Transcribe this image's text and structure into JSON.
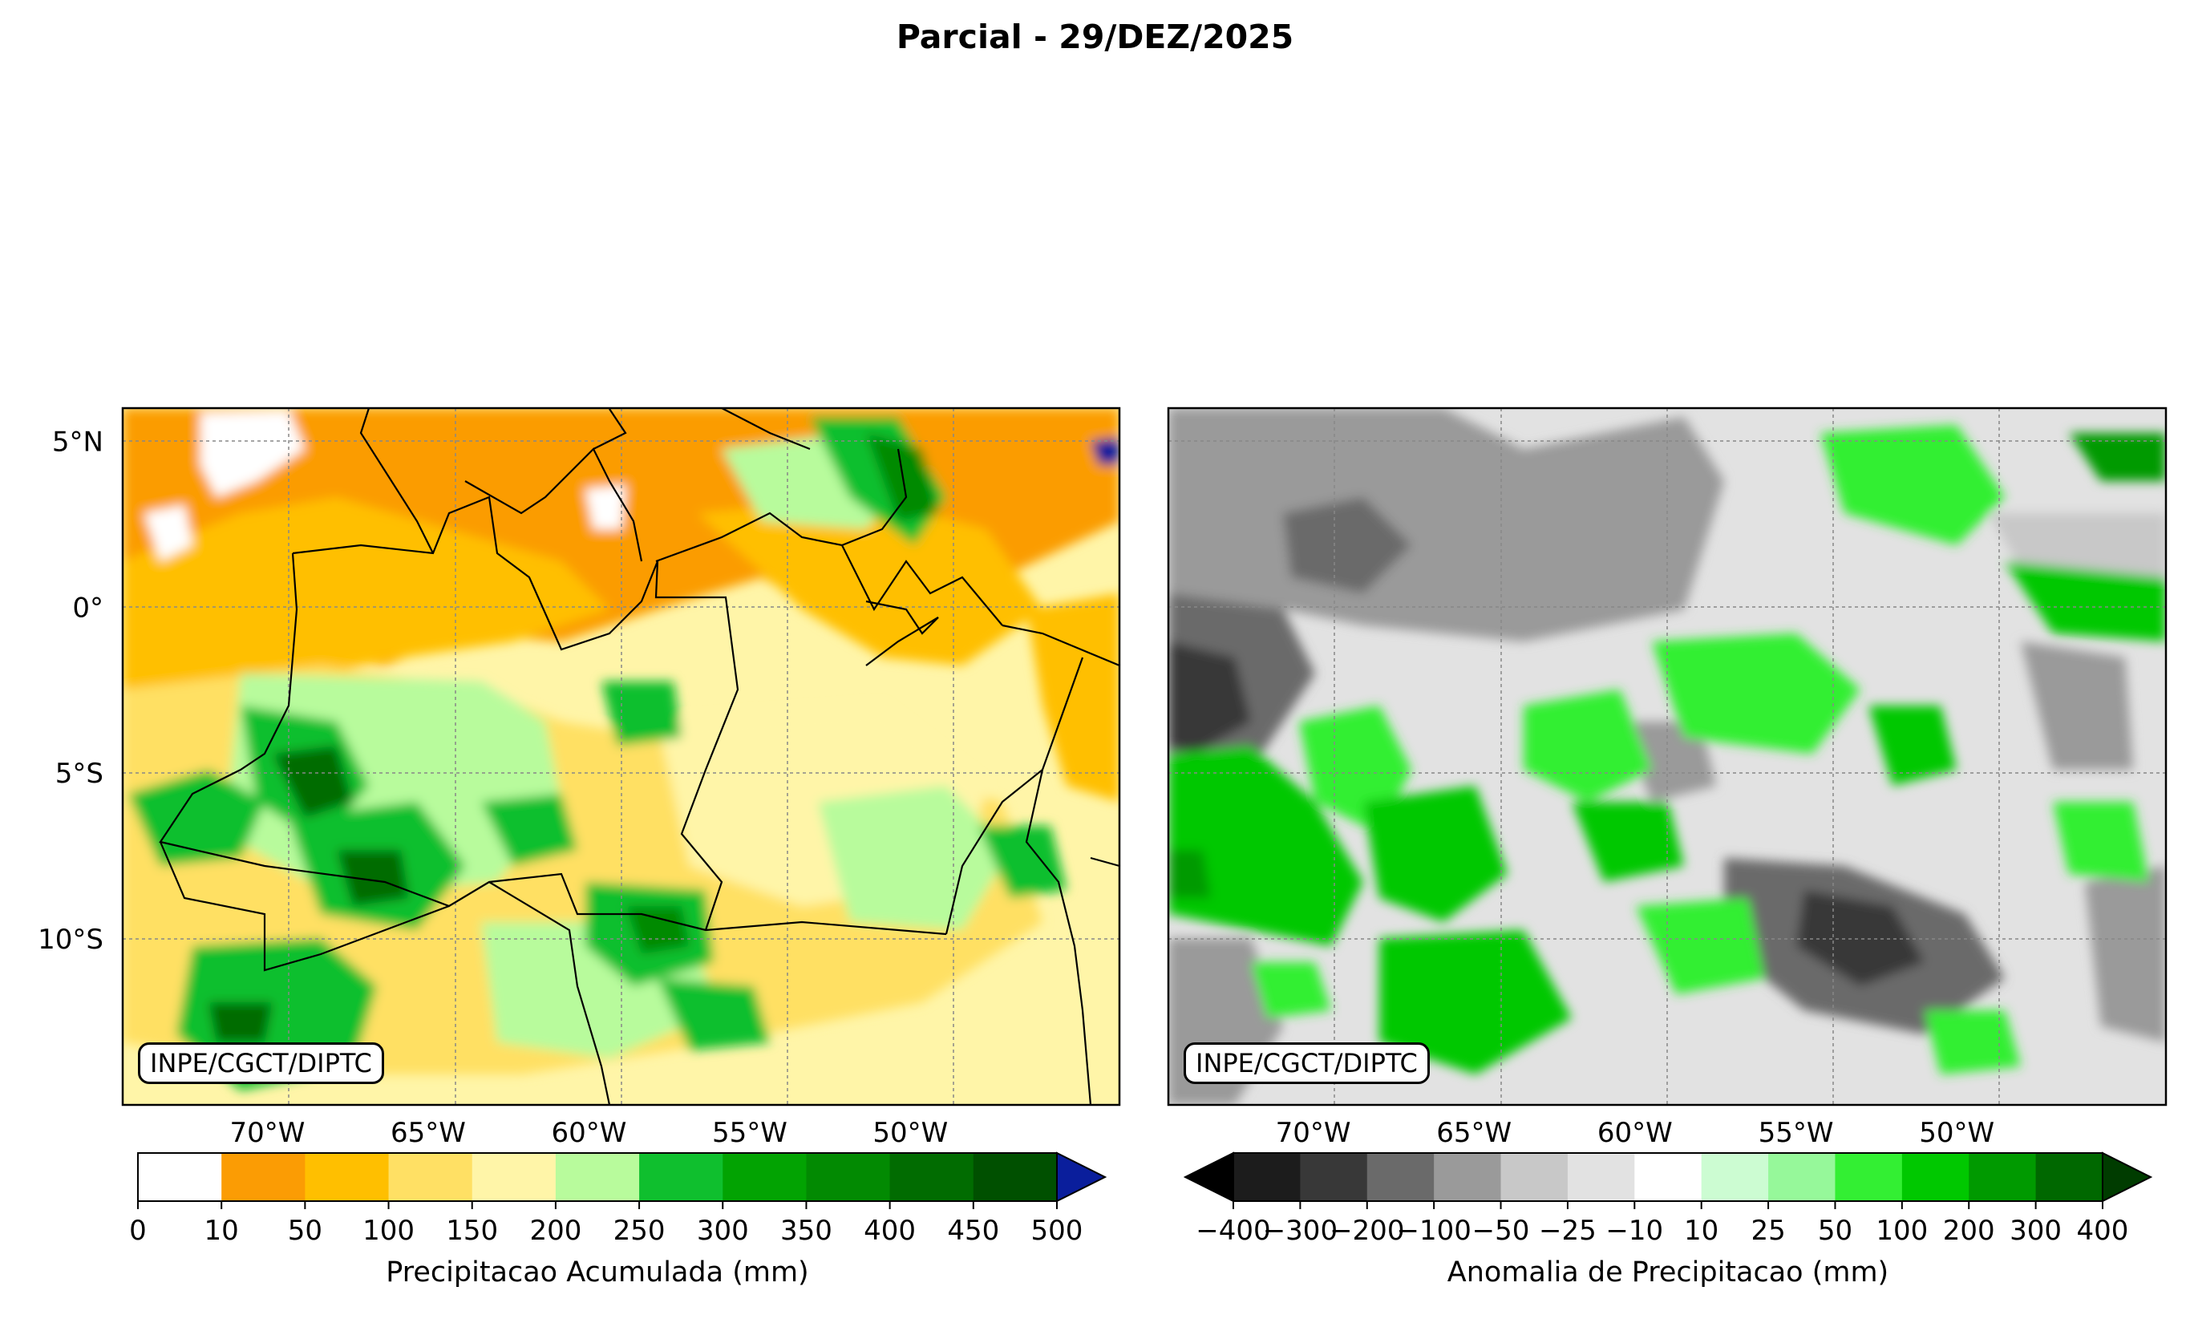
{
  "title": "Parcial - 29/DEZ/2025",
  "map_extent": {
    "lon": [
      -74.5,
      -43.5
    ],
    "lat": [
      -15.0,
      6.0
    ]
  },
  "lat_ticks": [
    {
      "value": 5,
      "label": "5°N"
    },
    {
      "value": 0,
      "label": "0°"
    },
    {
      "value": -5,
      "label": "5°S"
    },
    {
      "value": -10,
      "label": "10°S"
    }
  ],
  "lon_ticks": [
    {
      "value": -70,
      "label": "70°W"
    },
    {
      "value": -65,
      "label": "65°W"
    },
    {
      "value": -60,
      "label": "60°W"
    },
    {
      "value": -55,
      "label": "55°W"
    },
    {
      "value": -50,
      "label": "50°W"
    }
  ],
  "panels": [
    {
      "id": "accumulated",
      "credit": "INPE/CGCT/DIPTC",
      "colorbar": {
        "label": "Precipitacao Acumulada (mm)",
        "bounds": [
          "0",
          "10",
          "50",
          "100",
          "150",
          "200",
          "250",
          "300",
          "350",
          "400",
          "450",
          "500"
        ],
        "colors": [
          "#ffffff",
          "#fb9c04",
          "#ffbf00",
          "#ffe064",
          "#fff5a8",
          "#b8fb9c",
          "#0fbf2e",
          "#02a302",
          "#028a02",
          "#016c01",
          "#005000"
        ],
        "extend_max_color": "#0a1e9c"
      }
    },
    {
      "id": "anomaly",
      "credit": "INPE/CGCT/DIPTC",
      "colorbar": {
        "label": "Anomalia de Precipitacao (mm)",
        "bounds": [
          "−400",
          "−300",
          "−200",
          "−100",
          "−50",
          "−25",
          "−10",
          "10",
          "25",
          "50",
          "100",
          "200",
          "300",
          "400"
        ],
        "colors": [
          "#1c1c1c",
          "#383838",
          "#6a6a6a",
          "#9a9a9a",
          "#c8c8c8",
          "#e2e2e2",
          "#ffffff",
          "#ccfcd2",
          "#96f89a",
          "#33ef33",
          "#00c800",
          "#009a00",
          "#006800"
        ],
        "extend_min_color": "#000000",
        "extend_max_color": "#003c00"
      }
    }
  ]
}
